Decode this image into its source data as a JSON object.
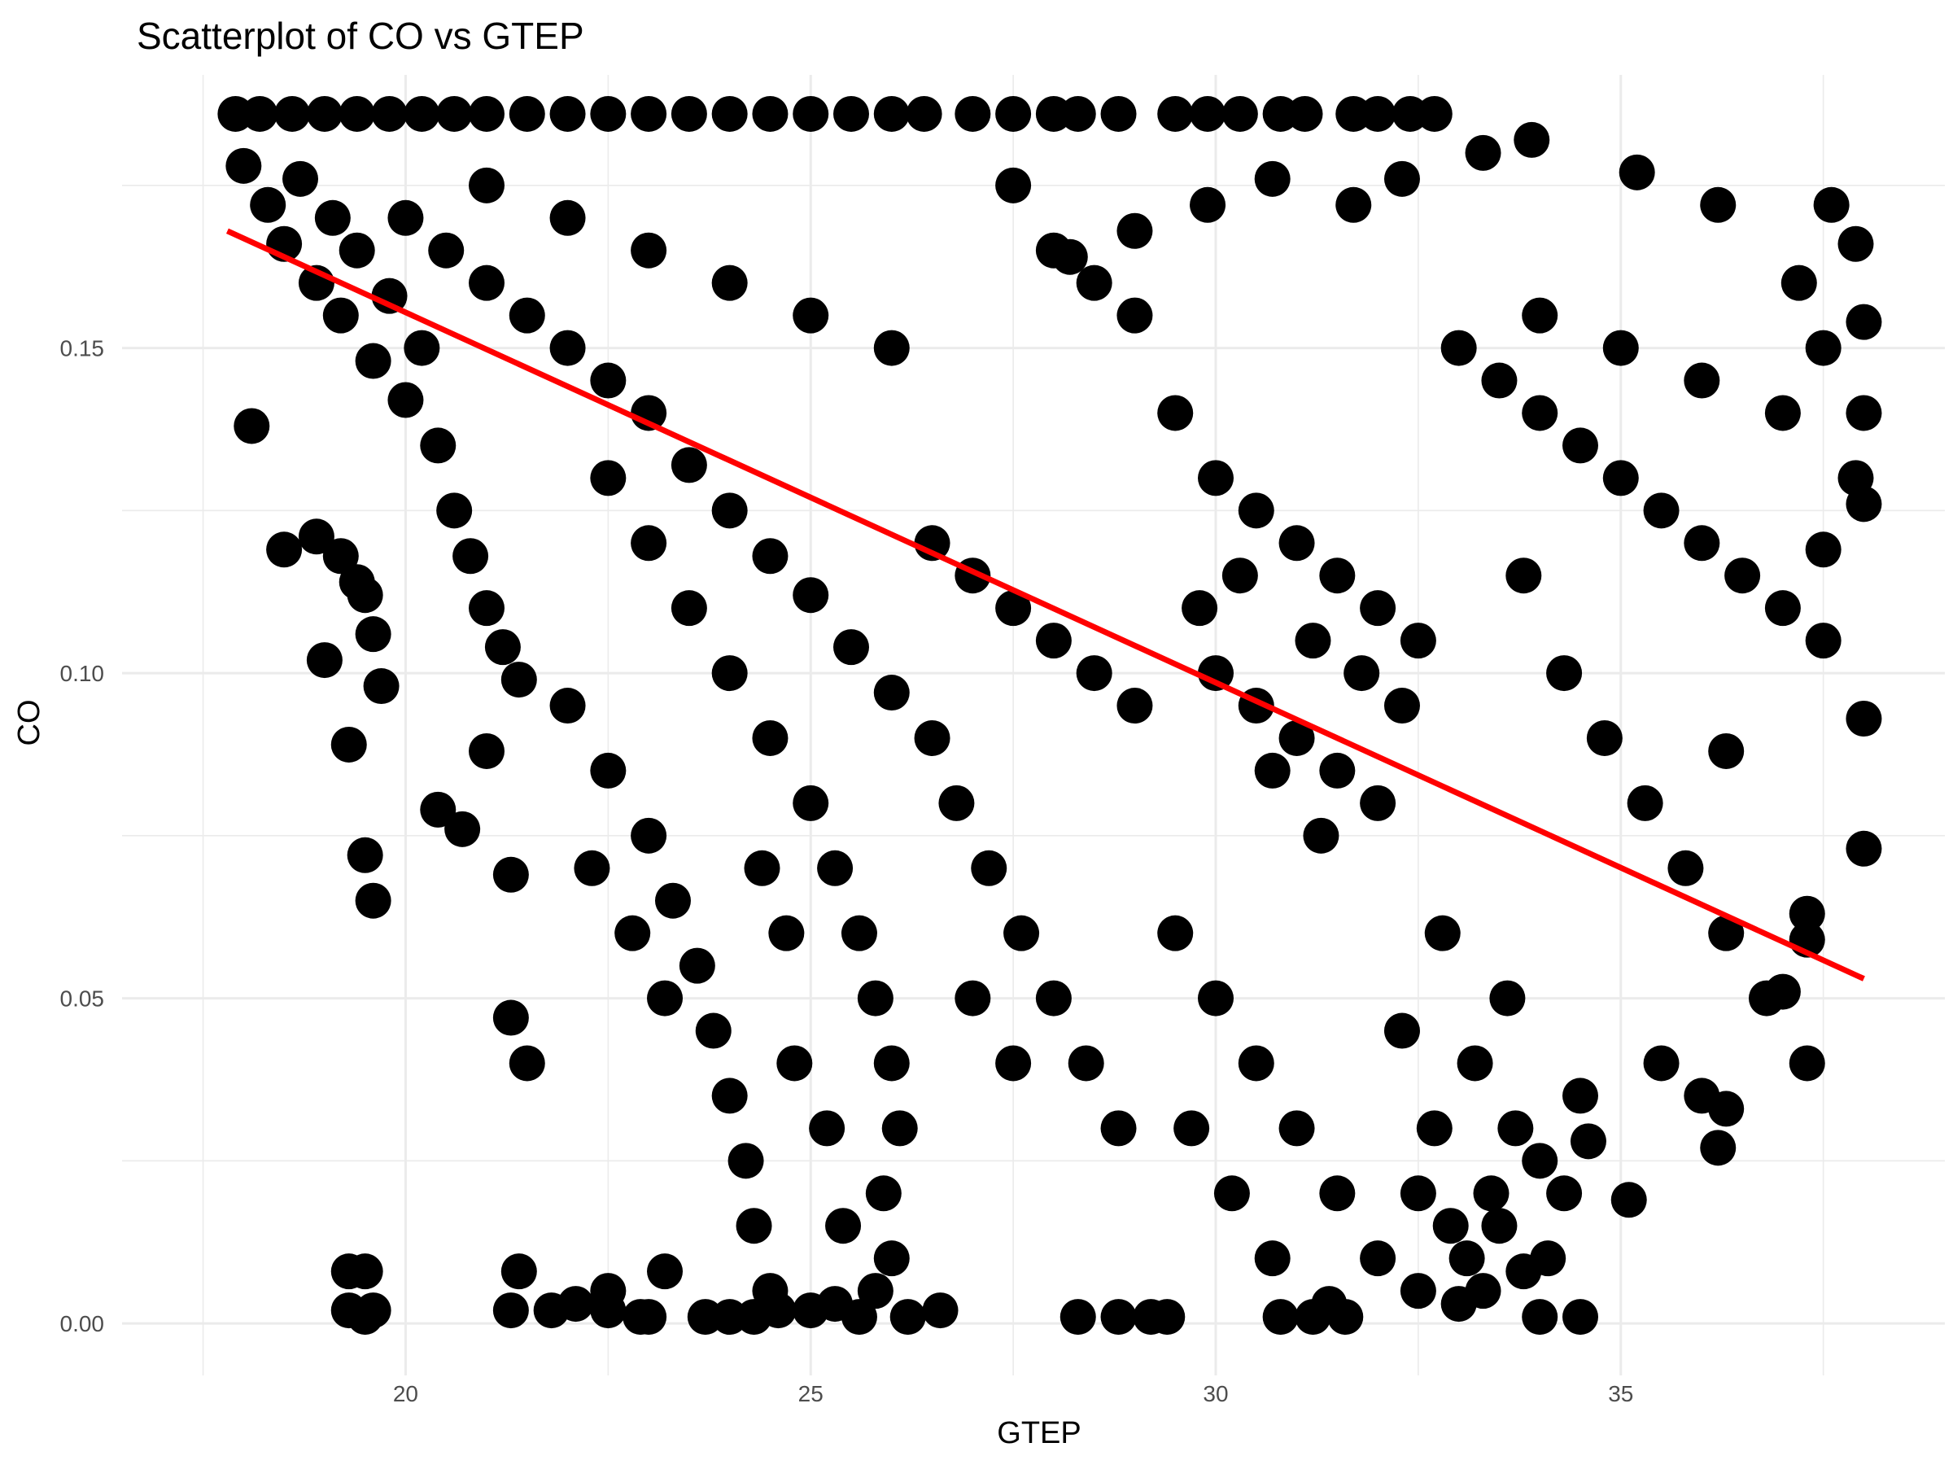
{
  "chart_data": {
    "type": "scatter",
    "title": "Scatterplot of CO vs GTEP",
    "xlabel": "GTEP",
    "ylabel": "CO",
    "xlim": [
      16.5,
      39.0
    ],
    "ylim": [
      -0.008,
      0.192
    ],
    "x_ticks": [
      {
        "value": 20,
        "label": "20"
      },
      {
        "value": 25,
        "label": "25"
      },
      {
        "value": 30,
        "label": "30"
      },
      {
        "value": 35,
        "label": "35"
      }
    ],
    "y_ticks": [
      {
        "value": 0.0,
        "label": "0.00"
      },
      {
        "value": 0.05,
        "label": "0.05"
      },
      {
        "value": 0.1,
        "label": "0.10"
      },
      {
        "value": 0.15,
        "label": "0.15"
      }
    ],
    "grid": true,
    "point_color": "#000000",
    "line_color": "#ff0000",
    "trend_line": {
      "x": [
        17.8,
        38.0
      ],
      "y": [
        0.168,
        0.053
      ]
    },
    "series": [
      {
        "points": [
          [
            17.9,
            0.186
          ],
          [
            18.2,
            0.186
          ],
          [
            18.6,
            0.186
          ],
          [
            19.0,
            0.186
          ],
          [
            19.4,
            0.186
          ],
          [
            19.8,
            0.186
          ],
          [
            20.2,
            0.186
          ],
          [
            20.6,
            0.186
          ],
          [
            21.0,
            0.186
          ],
          [
            21.5,
            0.186
          ],
          [
            22.0,
            0.186
          ],
          [
            22.5,
            0.186
          ],
          [
            23.0,
            0.186
          ],
          [
            23.5,
            0.186
          ],
          [
            24.0,
            0.186
          ],
          [
            24.5,
            0.186
          ],
          [
            25.0,
            0.186
          ],
          [
            25.5,
            0.186
          ],
          [
            26.0,
            0.186
          ],
          [
            26.4,
            0.186
          ],
          [
            27.0,
            0.186
          ],
          [
            27.5,
            0.186
          ],
          [
            28.0,
            0.186
          ],
          [
            28.3,
            0.186
          ],
          [
            28.8,
            0.186
          ],
          [
            29.5,
            0.186
          ],
          [
            29.9,
            0.186
          ],
          [
            30.3,
            0.186
          ],
          [
            30.8,
            0.186
          ],
          [
            31.1,
            0.186
          ],
          [
            31.7,
            0.186
          ],
          [
            32.0,
            0.186
          ],
          [
            32.4,
            0.186
          ],
          [
            32.7,
            0.186
          ],
          [
            18.0,
            0.178
          ],
          [
            18.3,
            0.172
          ],
          [
            18.5,
            0.166
          ],
          [
            18.7,
            0.176
          ],
          [
            18.9,
            0.16
          ],
          [
            19.1,
            0.17
          ],
          [
            19.2,
            0.155
          ],
          [
            19.4,
            0.165
          ],
          [
            19.6,
            0.148
          ],
          [
            19.8,
            0.158
          ],
          [
            20.0,
            0.142
          ],
          [
            20.2,
            0.15
          ],
          [
            20.4,
            0.135
          ],
          [
            20.6,
            0.125
          ],
          [
            20.8,
            0.118
          ],
          [
            21.0,
            0.11
          ],
          [
            21.2,
            0.104
          ],
          [
            21.4,
            0.099
          ],
          [
            18.1,
            0.138
          ],
          [
            18.5,
            0.119
          ],
          [
            18.9,
            0.121
          ],
          [
            19.0,
            0.102
          ],
          [
            19.2,
            0.118
          ],
          [
            19.4,
            0.114
          ],
          [
            19.5,
            0.112
          ],
          [
            19.6,
            0.106
          ],
          [
            19.7,
            0.098
          ],
          [
            19.3,
            0.089
          ],
          [
            19.6,
            0.065
          ],
          [
            19.5,
            0.072
          ],
          [
            20.0,
            0.17
          ],
          [
            20.5,
            0.165
          ],
          [
            21.0,
            0.16
          ],
          [
            21.5,
            0.155
          ],
          [
            22.0,
            0.15
          ],
          [
            22.5,
            0.145
          ],
          [
            23.0,
            0.14
          ],
          [
            23.5,
            0.132
          ],
          [
            24.0,
            0.125
          ],
          [
            24.5,
            0.118
          ],
          [
            25.0,
            0.112
          ],
          [
            25.5,
            0.104
          ],
          [
            26.0,
            0.097
          ],
          [
            26.5,
            0.09
          ],
          [
            21.0,
            0.175
          ],
          [
            22.0,
            0.17
          ],
          [
            23.0,
            0.165
          ],
          [
            24.0,
            0.16
          ],
          [
            25.0,
            0.155
          ],
          [
            26.0,
            0.15
          ],
          [
            22.5,
            0.13
          ],
          [
            23.0,
            0.12
          ],
          [
            23.5,
            0.11
          ],
          [
            24.0,
            0.1
          ],
          [
            24.5,
            0.09
          ],
          [
            25.0,
            0.08
          ],
          [
            25.3,
            0.07
          ],
          [
            25.6,
            0.06
          ],
          [
            25.8,
            0.05
          ],
          [
            26.0,
            0.04
          ],
          [
            26.1,
            0.03
          ],
          [
            25.9,
            0.02
          ],
          [
            26.0,
            0.01
          ],
          [
            25.8,
            0.005
          ],
          [
            22.0,
            0.095
          ],
          [
            22.5,
            0.085
          ],
          [
            23.0,
            0.075
          ],
          [
            23.3,
            0.065
          ],
          [
            23.6,
            0.055
          ],
          [
            23.8,
            0.045
          ],
          [
            24.0,
            0.035
          ],
          [
            24.2,
            0.025
          ],
          [
            24.3,
            0.015
          ],
          [
            24.5,
            0.005
          ],
          [
            22.3,
            0.07
          ],
          [
            22.8,
            0.06
          ],
          [
            23.2,
            0.05
          ],
          [
            24.8,
            0.04
          ],
          [
            25.2,
            0.03
          ],
          [
            25.4,
            0.015
          ],
          [
            24.7,
            0.06
          ],
          [
            24.4,
            0.07
          ],
          [
            26.5,
            0.12
          ],
          [
            27.0,
            0.115
          ],
          [
            27.5,
            0.11
          ],
          [
            28.0,
            0.105
          ],
          [
            28.5,
            0.1
          ],
          [
            29.0,
            0.095
          ],
          [
            26.8,
            0.08
          ],
          [
            27.2,
            0.07
          ],
          [
            27.6,
            0.06
          ],
          [
            28.0,
            0.05
          ],
          [
            28.4,
            0.04
          ],
          [
            28.8,
            0.03
          ],
          [
            27.0,
            0.05
          ],
          [
            27.5,
            0.04
          ],
          [
            28.0,
            0.165
          ],
          [
            28.5,
            0.16
          ],
          [
            29.0,
            0.155
          ],
          [
            27.5,
            0.175
          ],
          [
            29.5,
            0.14
          ],
          [
            30.0,
            0.13
          ],
          [
            30.5,
            0.125
          ],
          [
            31.0,
            0.12
          ],
          [
            31.5,
            0.115
          ],
          [
            32.0,
            0.11
          ],
          [
            32.5,
            0.105
          ],
          [
            30.0,
            0.1
          ],
          [
            30.5,
            0.095
          ],
          [
            31.0,
            0.09
          ],
          [
            31.5,
            0.085
          ],
          [
            32.0,
            0.08
          ],
          [
            29.8,
            0.11
          ],
          [
            30.3,
            0.115
          ],
          [
            31.2,
            0.105
          ],
          [
            31.8,
            0.1
          ],
          [
            32.3,
            0.095
          ],
          [
            30.7,
            0.085
          ],
          [
            31.3,
            0.075
          ],
          [
            29.5,
            0.06
          ],
          [
            30.0,
            0.05
          ],
          [
            30.5,
            0.04
          ],
          [
            31.0,
            0.03
          ],
          [
            31.5,
            0.02
          ],
          [
            32.0,
            0.01
          ],
          [
            32.5,
            0.005
          ],
          [
            33.0,
            0.003
          ],
          [
            33.5,
            0.015
          ],
          [
            34.0,
            0.025
          ],
          [
            34.5,
            0.035
          ],
          [
            29.7,
            0.03
          ],
          [
            30.2,
            0.02
          ],
          [
            30.7,
            0.01
          ],
          [
            31.4,
            0.003
          ],
          [
            33.2,
            0.04
          ],
          [
            33.6,
            0.05
          ],
          [
            32.8,
            0.06
          ],
          [
            32.3,
            0.045
          ],
          [
            33.0,
            0.15
          ],
          [
            33.5,
            0.145
          ],
          [
            34.0,
            0.14
          ],
          [
            34.5,
            0.135
          ],
          [
            35.0,
            0.13
          ],
          [
            35.5,
            0.125
          ],
          [
            36.0,
            0.12
          ],
          [
            36.5,
            0.115
          ],
          [
            37.0,
            0.11
          ],
          [
            37.5,
            0.105
          ],
          [
            34.0,
            0.155
          ],
          [
            35.0,
            0.15
          ],
          [
            36.0,
            0.145
          ],
          [
            37.0,
            0.14
          ],
          [
            33.8,
            0.115
          ],
          [
            34.3,
            0.1
          ],
          [
            34.8,
            0.09
          ],
          [
            35.3,
            0.08
          ],
          [
            35.8,
            0.07
          ],
          [
            36.3,
            0.06
          ],
          [
            36.8,
            0.05
          ],
          [
            37.3,
            0.04
          ],
          [
            35.2,
            0.177
          ],
          [
            36.2,
            0.172
          ],
          [
            37.6,
            0.172
          ],
          [
            37.9,
            0.166
          ],
          [
            37.2,
            0.16
          ],
          [
            37.5,
            0.15
          ],
          [
            38.0,
            0.154
          ],
          [
            38.0,
            0.14
          ],
          [
            38.0,
            0.126
          ],
          [
            37.9,
            0.13
          ],
          [
            37.5,
            0.119
          ],
          [
            38.0,
            0.093
          ],
          [
            38.0,
            0.073
          ],
          [
            37.3,
            0.063
          ],
          [
            37.3,
            0.059
          ],
          [
            37.0,
            0.051
          ],
          [
            36.3,
            0.088
          ],
          [
            36.3,
            0.033
          ],
          [
            36.2,
            0.027
          ],
          [
            35.1,
            0.019
          ],
          [
            36.0,
            0.035
          ],
          [
            35.5,
            0.04
          ],
          [
            33.9,
            0.182
          ],
          [
            33.3,
            0.18
          ],
          [
            32.3,
            0.176
          ],
          [
            31.7,
            0.172
          ],
          [
            30.7,
            0.176
          ],
          [
            29.9,
            0.172
          ],
          [
            29.0,
            0.168
          ],
          [
            28.2,
            0.164
          ],
          [
            21.3,
            0.047
          ],
          [
            21.5,
            0.04
          ],
          [
            21.4,
            0.008
          ],
          [
            21.8,
            0.002
          ],
          [
            22.1,
            0.003
          ],
          [
            21.3,
            0.069
          ],
          [
            20.4,
            0.079
          ],
          [
            20.7,
            0.076
          ],
          [
            21.0,
            0.088
          ],
          [
            19.3,
            0.008
          ],
          [
            19.5,
            0.008
          ],
          [
            19.3,
            0.002
          ],
          [
            19.5,
            0.001
          ],
          [
            19.6,
            0.002
          ],
          [
            21.3,
            0.002
          ],
          [
            22.5,
            0.005
          ],
          [
            22.5,
            0.002
          ],
          [
            22.9,
            0.001
          ],
          [
            23.0,
            0.001
          ],
          [
            23.2,
            0.008
          ],
          [
            23.7,
            0.001
          ],
          [
            24.0,
            0.001
          ],
          [
            24.3,
            0.001
          ],
          [
            24.6,
            0.002
          ],
          [
            25.0,
            0.002
          ],
          [
            25.3,
            0.003
          ],
          [
            25.6,
            0.001
          ],
          [
            26.2,
            0.001
          ],
          [
            26.6,
            0.002
          ],
          [
            28.3,
            0.001
          ],
          [
            28.8,
            0.001
          ],
          [
            29.2,
            0.001
          ],
          [
            29.4,
            0.001
          ],
          [
            30.8,
            0.001
          ],
          [
            31.2,
            0.001
          ],
          [
            31.6,
            0.001
          ],
          [
            34.0,
            0.001
          ],
          [
            34.5,
            0.001
          ],
          [
            33.1,
            0.01
          ],
          [
            33.4,
            0.02
          ],
          [
            33.7,
            0.03
          ],
          [
            34.1,
            0.01
          ],
          [
            34.3,
            0.02
          ],
          [
            34.6,
            0.028
          ],
          [
            32.7,
            0.03
          ],
          [
            32.5,
            0.02
          ],
          [
            32.9,
            0.015
          ],
          [
            33.3,
            0.005
          ],
          [
            33.8,
            0.008
          ]
        ]
      }
    ]
  }
}
